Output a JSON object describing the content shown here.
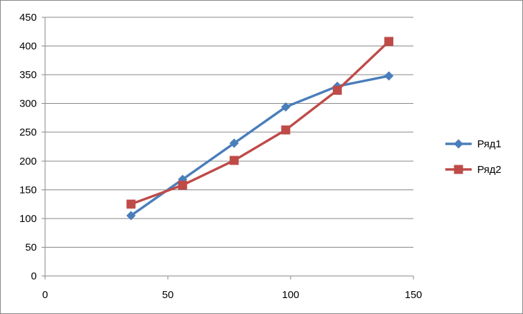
{
  "chart_data": {
    "type": "scatter",
    "title": "",
    "xlabel": "",
    "ylabel": "",
    "xlim": [
      0,
      150
    ],
    "ylim": [
      0,
      450
    ],
    "xticks": [
      0,
      50,
      100,
      150
    ],
    "yticks": [
      0,
      50,
      100,
      150,
      200,
      250,
      300,
      350,
      400,
      450
    ],
    "grid": "horizontal major gridlines",
    "legend": "right",
    "series": [
      {
        "name": "Ряд1",
        "color": "#4A7EBB",
        "marker": "diamond",
        "x": [
          35,
          56,
          77,
          98,
          119,
          140
        ],
        "y": [
          105,
          168,
          231,
          294,
          330,
          348
        ]
      },
      {
        "name": "Ряд2",
        "color": "#BE4B48",
        "marker": "square",
        "x": [
          35,
          56,
          77,
          98,
          119,
          140
        ],
        "y": [
          125,
          158,
          201,
          254,
          323,
          408
        ]
      }
    ]
  }
}
